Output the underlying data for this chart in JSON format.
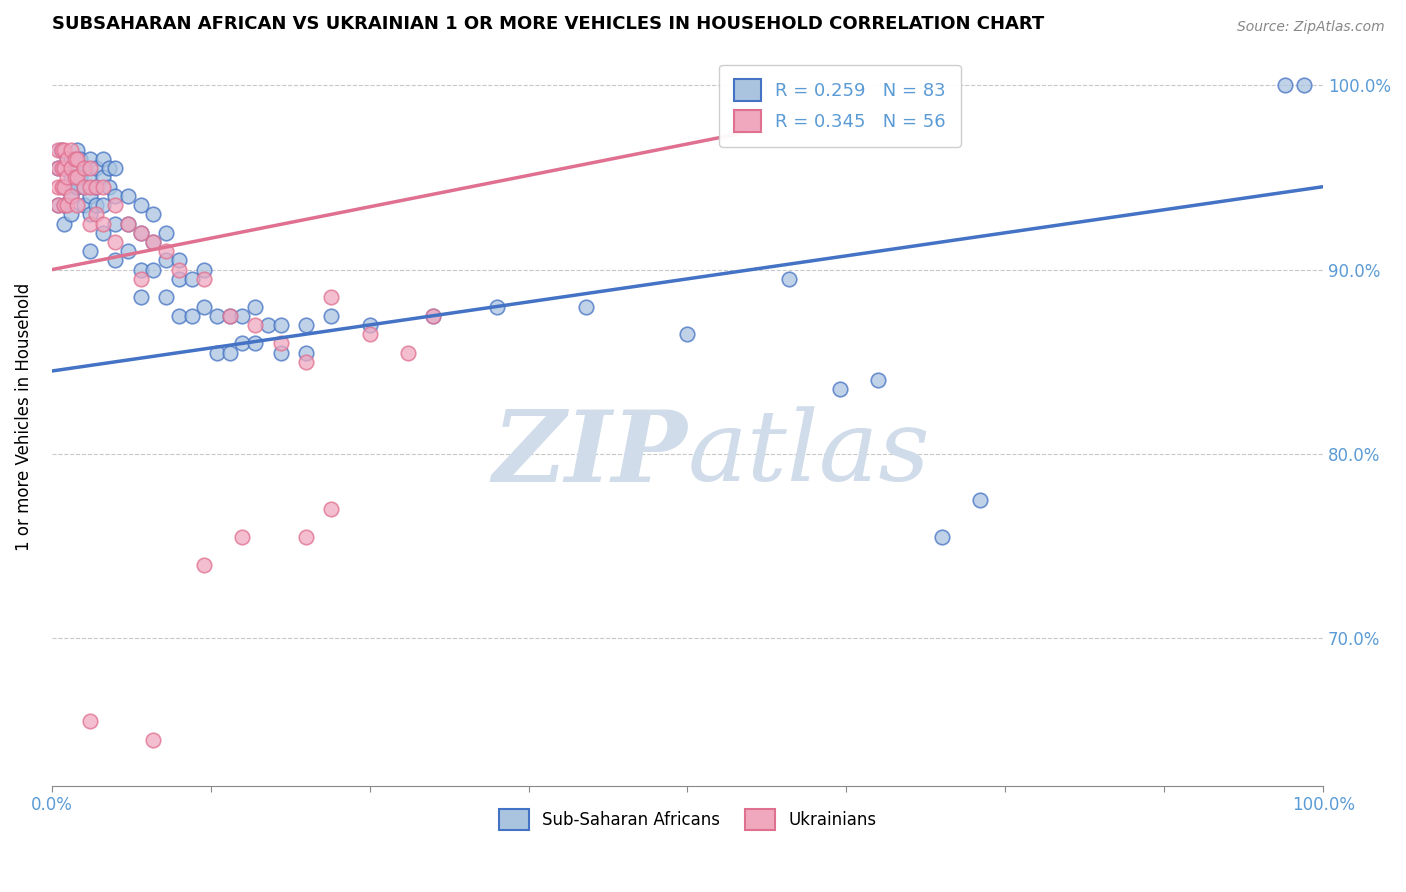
{
  "title": "SUBSAHARAN AFRICAN VS UKRAINIAN 1 OR MORE VEHICLES IN HOUSEHOLD CORRELATION CHART",
  "source": "Source: ZipAtlas.com",
  "ylabel": "1 or more Vehicles in Household",
  "legend_labels": [
    "Sub-Saharan Africans",
    "Ukrainians"
  ],
  "blue_R": 0.259,
  "blue_N": 83,
  "pink_R": 0.345,
  "pink_N": 56,
  "blue_color": "#aac4e0",
  "pink_color": "#f0a8bf",
  "blue_line_color": "#4472C4",
  "pink_line_color": "#e07090",
  "watermark_color": "#d0dcea",
  "xlim": [
    0.0,
    1.0
  ],
  "ylim": [
    0.62,
    1.02
  ],
  "blue_scatter": [
    [
      0.005,
      0.955
    ],
    [
      0.005,
      0.935
    ],
    [
      0.007,
      0.965
    ],
    [
      0.01,
      0.955
    ],
    [
      0.01,
      0.945
    ],
    [
      0.01,
      0.935
    ],
    [
      0.01,
      0.925
    ],
    [
      0.012,
      0.96
    ],
    [
      0.012,
      0.945
    ],
    [
      0.015,
      0.96
    ],
    [
      0.015,
      0.95
    ],
    [
      0.015,
      0.94
    ],
    [
      0.015,
      0.93
    ],
    [
      0.02,
      0.965
    ],
    [
      0.02,
      0.955
    ],
    [
      0.02,
      0.945
    ],
    [
      0.022,
      0.96
    ],
    [
      0.022,
      0.95
    ],
    [
      0.025,
      0.955
    ],
    [
      0.025,
      0.945
    ],
    [
      0.025,
      0.935
    ],
    [
      0.03,
      0.96
    ],
    [
      0.03,
      0.95
    ],
    [
      0.03,
      0.94
    ],
    [
      0.03,
      0.93
    ],
    [
      0.03,
      0.91
    ],
    [
      0.035,
      0.955
    ],
    [
      0.035,
      0.945
    ],
    [
      0.035,
      0.935
    ],
    [
      0.04,
      0.96
    ],
    [
      0.04,
      0.95
    ],
    [
      0.04,
      0.935
    ],
    [
      0.04,
      0.92
    ],
    [
      0.045,
      0.955
    ],
    [
      0.045,
      0.945
    ],
    [
      0.05,
      0.955
    ],
    [
      0.05,
      0.94
    ],
    [
      0.05,
      0.925
    ],
    [
      0.05,
      0.905
    ],
    [
      0.06,
      0.94
    ],
    [
      0.06,
      0.925
    ],
    [
      0.06,
      0.91
    ],
    [
      0.07,
      0.935
    ],
    [
      0.07,
      0.92
    ],
    [
      0.07,
      0.9
    ],
    [
      0.07,
      0.885
    ],
    [
      0.08,
      0.93
    ],
    [
      0.08,
      0.915
    ],
    [
      0.08,
      0.9
    ],
    [
      0.09,
      0.92
    ],
    [
      0.09,
      0.905
    ],
    [
      0.09,
      0.885
    ],
    [
      0.1,
      0.905
    ],
    [
      0.1,
      0.895
    ],
    [
      0.1,
      0.875
    ],
    [
      0.11,
      0.895
    ],
    [
      0.11,
      0.875
    ],
    [
      0.12,
      0.9
    ],
    [
      0.12,
      0.88
    ],
    [
      0.13,
      0.875
    ],
    [
      0.13,
      0.855
    ],
    [
      0.14,
      0.875
    ],
    [
      0.14,
      0.855
    ],
    [
      0.15,
      0.875
    ],
    [
      0.15,
      0.86
    ],
    [
      0.16,
      0.88
    ],
    [
      0.16,
      0.86
    ],
    [
      0.17,
      0.87
    ],
    [
      0.18,
      0.87
    ],
    [
      0.18,
      0.855
    ],
    [
      0.2,
      0.87
    ],
    [
      0.2,
      0.855
    ],
    [
      0.22,
      0.875
    ],
    [
      0.25,
      0.87
    ],
    [
      0.3,
      0.875
    ],
    [
      0.35,
      0.88
    ],
    [
      0.42,
      0.88
    ],
    [
      0.5,
      0.865
    ],
    [
      0.58,
      0.895
    ],
    [
      0.62,
      0.835
    ],
    [
      0.65,
      0.84
    ],
    [
      0.7,
      0.755
    ],
    [
      0.73,
      0.775
    ],
    [
      0.97,
      1.0
    ],
    [
      0.985,
      1.0
    ]
  ],
  "pink_scatter": [
    [
      0.005,
      0.965
    ],
    [
      0.005,
      0.955
    ],
    [
      0.005,
      0.945
    ],
    [
      0.005,
      0.935
    ],
    [
      0.008,
      0.965
    ],
    [
      0.008,
      0.955
    ],
    [
      0.008,
      0.945
    ],
    [
      0.01,
      0.965
    ],
    [
      0.01,
      0.955
    ],
    [
      0.01,
      0.945
    ],
    [
      0.01,
      0.935
    ],
    [
      0.012,
      0.96
    ],
    [
      0.012,
      0.95
    ],
    [
      0.012,
      0.935
    ],
    [
      0.015,
      0.965
    ],
    [
      0.015,
      0.955
    ],
    [
      0.015,
      0.94
    ],
    [
      0.018,
      0.96
    ],
    [
      0.018,
      0.95
    ],
    [
      0.02,
      0.96
    ],
    [
      0.02,
      0.95
    ],
    [
      0.02,
      0.935
    ],
    [
      0.025,
      0.955
    ],
    [
      0.025,
      0.945
    ],
    [
      0.03,
      0.955
    ],
    [
      0.03,
      0.945
    ],
    [
      0.03,
      0.925
    ],
    [
      0.035,
      0.945
    ],
    [
      0.035,
      0.93
    ],
    [
      0.04,
      0.945
    ],
    [
      0.04,
      0.925
    ],
    [
      0.05,
      0.935
    ],
    [
      0.05,
      0.915
    ],
    [
      0.06,
      0.925
    ],
    [
      0.07,
      0.92
    ],
    [
      0.07,
      0.895
    ],
    [
      0.08,
      0.915
    ],
    [
      0.09,
      0.91
    ],
    [
      0.1,
      0.9
    ],
    [
      0.12,
      0.895
    ],
    [
      0.14,
      0.875
    ],
    [
      0.16,
      0.87
    ],
    [
      0.18,
      0.86
    ],
    [
      0.2,
      0.85
    ],
    [
      0.22,
      0.885
    ],
    [
      0.25,
      0.865
    ],
    [
      0.28,
      0.855
    ],
    [
      0.3,
      0.875
    ],
    [
      0.03,
      0.655
    ],
    [
      0.08,
      0.645
    ],
    [
      0.12,
      0.74
    ],
    [
      0.15,
      0.755
    ],
    [
      0.2,
      0.755
    ],
    [
      0.22,
      0.77
    ]
  ],
  "blue_line_x0": 0.0,
  "blue_line_y0": 0.845,
  "blue_line_x1": 1.0,
  "blue_line_y1": 0.945,
  "pink_line_x0": 0.0,
  "pink_line_y0": 0.9,
  "pink_line_x1": 0.55,
  "pink_line_y1": 0.975
}
